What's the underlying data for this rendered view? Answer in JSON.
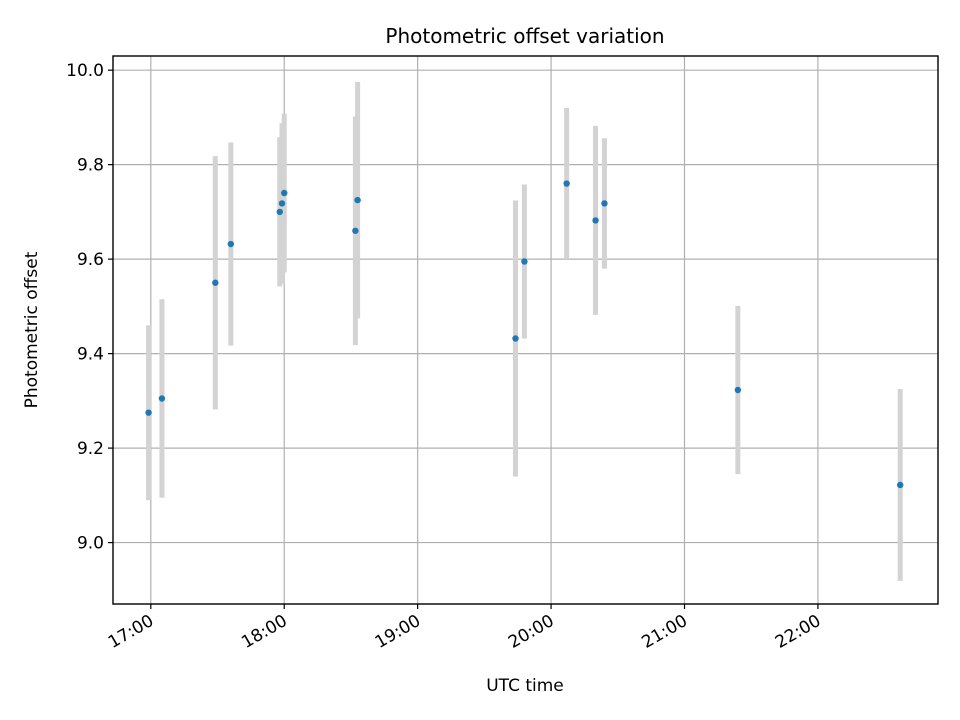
{
  "chart_data": {
    "type": "scatter",
    "title": "Photometric offset variation",
    "xlabel": "UTC time",
    "ylabel": "Photometric offset",
    "x_axis": {
      "type": "time",
      "range": [
        "16:43",
        "22:54"
      ],
      "ticks": [
        "17:00",
        "18:00",
        "19:00",
        "20:00",
        "21:00",
        "22:00"
      ]
    },
    "y_axis": {
      "range": [
        8.87,
        10.03
      ],
      "ticks": [
        "9.0",
        "9.2",
        "9.4",
        "9.6",
        "9.8",
        "10.0"
      ]
    },
    "grid": true,
    "colors": {
      "points": "#1f77b4",
      "error_bars": "#d3d3d3"
    },
    "points": [
      {
        "x": "16:59",
        "y": 9.275,
        "err": 0.185
      },
      {
        "x": "17:05",
        "y": 9.305,
        "err": 0.21
      },
      {
        "x": "17:29",
        "y": 9.55,
        "err": 0.268
      },
      {
        "x": "17:36",
        "y": 9.632,
        "err": 0.215
      },
      {
        "x": "17:58",
        "y": 9.7,
        "err": 0.158
      },
      {
        "x": "17:59",
        "y": 9.718,
        "err": 0.17
      },
      {
        "x": "18:00",
        "y": 9.74,
        "err": 0.168
      },
      {
        "x": "18:32",
        "y": 9.66,
        "err": 0.242
      },
      {
        "x": "18:33",
        "y": 9.725,
        "err": 0.25
      },
      {
        "x": "19:44",
        "y": 9.432,
        "err": 0.292
      },
      {
        "x": "19:48",
        "y": 9.595,
        "err": 0.163
      },
      {
        "x": "20:07",
        "y": 9.76,
        "err": 0.16
      },
      {
        "x": "20:20",
        "y": 9.682,
        "err": 0.2
      },
      {
        "x": "20:24",
        "y": 9.718,
        "err": 0.138
      },
      {
        "x": "21:24",
        "y": 9.323,
        "err": 0.178
      },
      {
        "x": "22:37",
        "y": 9.122,
        "err": 0.203
      }
    ]
  }
}
